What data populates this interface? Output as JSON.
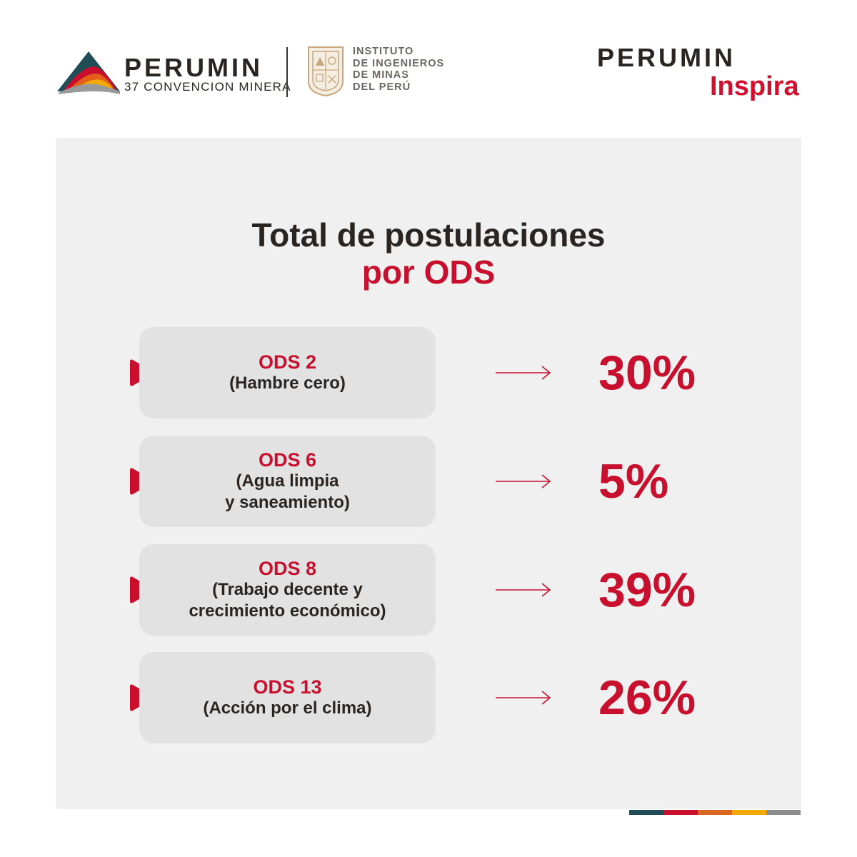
{
  "header": {
    "perumin": {
      "brand": "PERUMIN",
      "subtitle": "37 CONVENCION MINERA"
    },
    "institute": {
      "lines": [
        "INSTITUTO",
        "DE INGENIEROS",
        "DE MINAS",
        "DEL PERÚ"
      ]
    },
    "inspira": {
      "brand": "PERUMIN",
      "script": "Inspira"
    }
  },
  "main": {
    "title": "Total de postulaciones",
    "subtitle": "por ODS",
    "rows": [
      {
        "code": "ODS 2",
        "description": "(Hambre cero)",
        "value": "30%"
      },
      {
        "code": "ODS 6",
        "description": "(Agua limpia\ny saneamiento)",
        "value": "5%"
      },
      {
        "code": "ODS 8",
        "description": "(Trabajo decente y\ncrecimiento económico)",
        "value": "39%"
      },
      {
        "code": "ODS 13",
        "description": "(Acción por el clima)",
        "value": "26%"
      }
    ]
  },
  "colors": {
    "accent": "#c8102e",
    "text_dark": "#2b2522",
    "panel_bg": "#f0f0f0",
    "box_bg": "#e2e2e2",
    "strip": [
      "#1f4e57",
      "#c8102e",
      "#d9651e",
      "#f2a900",
      "#8c8c8c"
    ]
  },
  "icons": {
    "bullet": "play-triangle-icon",
    "arrow": "long-right-arrow-icon",
    "perumin_logo": "mountain-layers-logo",
    "institute_seal": "institute-seal-icon"
  }
}
